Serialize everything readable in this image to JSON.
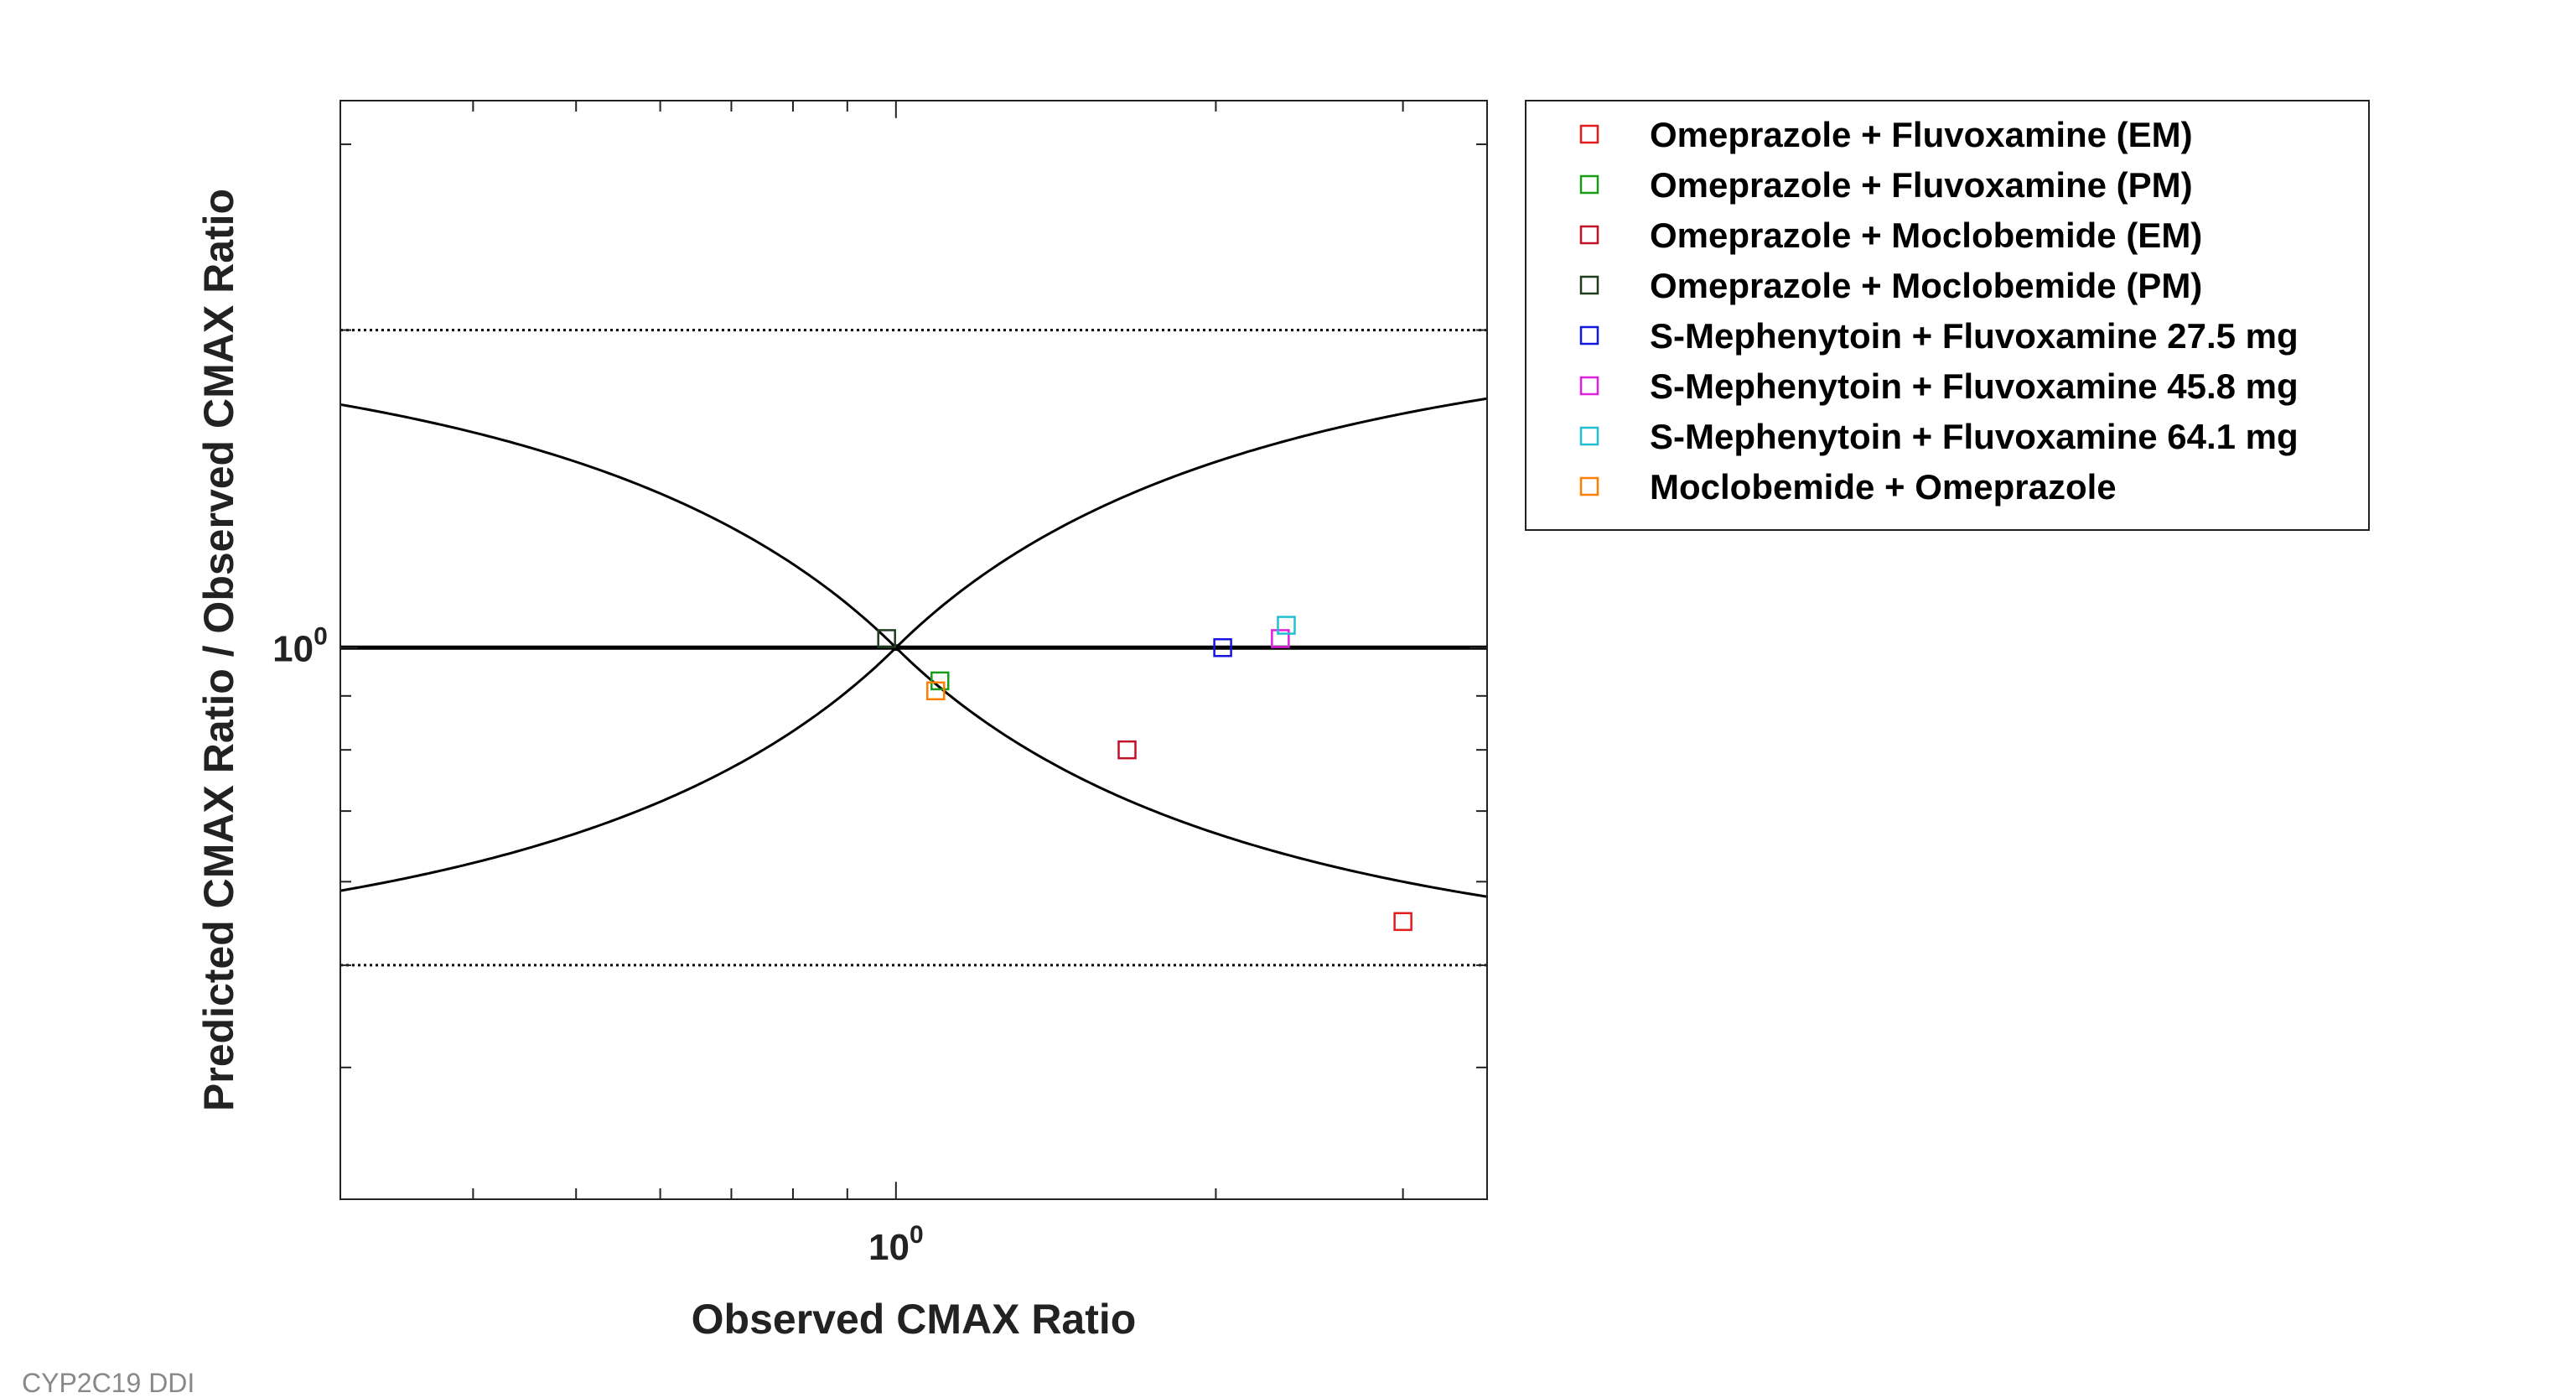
{
  "footer": "CYP2C19 DDI",
  "chart_data": {
    "type": "scatter",
    "xlabel": "Observed CMAX Ratio",
    "ylabel": "Predicted CMAX Ratio / Observed CMAX Ratio",
    "xscale": "log",
    "yscale": "log",
    "xlim": [
      0.3,
      3.6
    ],
    "ylim": [
      0.3,
      3.3
    ],
    "x_tick_label": {
      "base": "10",
      "exponent": "0"
    },
    "y_tick_label": {
      "base": "10",
      "exponent": "0"
    },
    "reference_lines": {
      "unity": 1.0,
      "limits": [
        0.5,
        2.0
      ],
      "guest_curve_delta": 1.0
    },
    "legend_position": "outside-right",
    "marker": "square-open",
    "series": [
      {
        "name": "Omeprazole + Fluvoxamine (EM)",
        "color": "#e31a1c",
        "points": [
          {
            "x": 3.0,
            "y": 0.55
          }
        ]
      },
      {
        "name": "Omeprazole + Fluvoxamine (PM)",
        "color": "#1a9a1a",
        "points": [
          {
            "x": 1.1,
            "y": 0.93
          }
        ]
      },
      {
        "name": "Omeprazole + Moclobemide (EM)",
        "color": "#c0102a",
        "points": [
          {
            "x": 1.65,
            "y": 0.8
          }
        ]
      },
      {
        "name": "Omeprazole + Moclobemide (PM)",
        "color": "#1f3d1f",
        "points": [
          {
            "x": 0.98,
            "y": 1.02
          }
        ]
      },
      {
        "name": "S-Mephenytoin + Fluvoxamine 27.5 mg",
        "color": "#1515e0",
        "points": [
          {
            "x": 2.03,
            "y": 1.0
          }
        ]
      },
      {
        "name": "S-Mephenytoin + Fluvoxamine 45.8 mg",
        "color": "#e020e0",
        "points": [
          {
            "x": 2.3,
            "y": 1.02
          }
        ]
      },
      {
        "name": "S-Mephenytoin + Fluvoxamine 64.1 mg",
        "color": "#20c0d0",
        "points": [
          {
            "x": 2.33,
            "y": 1.05
          }
        ]
      },
      {
        "name": "Moclobemide + Omeprazole",
        "color": "#ff8000",
        "points": [
          {
            "x": 1.09,
            "y": 0.91
          }
        ]
      }
    ]
  }
}
